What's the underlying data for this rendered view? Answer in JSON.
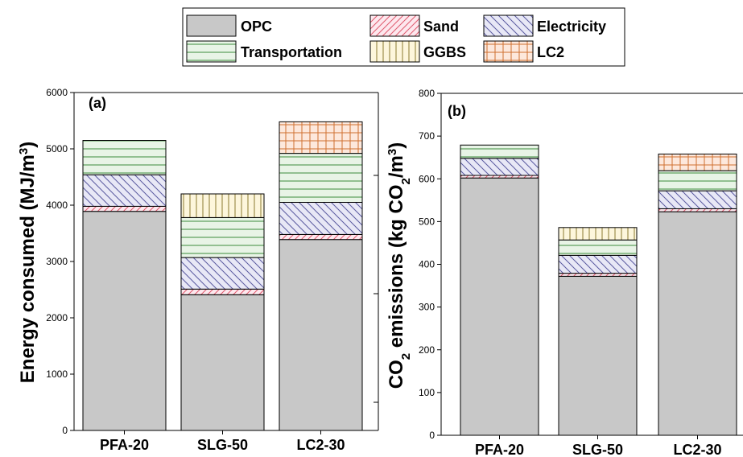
{
  "legend": {
    "items": [
      {
        "key": "opc",
        "label": "OPC"
      },
      {
        "key": "sand",
        "label": "Sand"
      },
      {
        "key": "electricity",
        "label": "Electricity"
      },
      {
        "key": "transportation",
        "label": "Transportation"
      },
      {
        "key": "ggbs",
        "label": "GGBS"
      },
      {
        "key": "lc2",
        "label": "LC2"
      }
    ]
  },
  "colors": {
    "opc": "#c8c8c8",
    "sand": "#e05a6e",
    "electricity": "#5a5aa0",
    "transportation": "#3c8c3c",
    "ggbs": "#8a7a30",
    "lc2": "#d07030",
    "sand_bg": "#fde8ee",
    "electricity_bg": "#e8e8f6",
    "transportation_bg": "#e8f4e6",
    "ggbs_bg": "#fdf6dc",
    "lc2_bg": "#fde8dc"
  },
  "chart_data": [
    {
      "type": "bar",
      "stacked": true,
      "panel_label": "(a)",
      "ylabel_parts": [
        "Energy consumed (MJ/m",
        "3",
        ")"
      ],
      "ylim": [
        0,
        6000
      ],
      "yticks": [
        0,
        1000,
        2000,
        3000,
        4000,
        5000,
        6000
      ],
      "categories": [
        "PFA-20",
        "SLG-50",
        "LC2-30"
      ],
      "series": [
        {
          "key": "opc",
          "name": "OPC",
          "values": [
            3890,
            2410,
            3390
          ]
        },
        {
          "key": "sand",
          "name": "Sand",
          "values": [
            90,
            100,
            90
          ]
        },
        {
          "key": "electricity",
          "name": "Electricity",
          "values": [
            560,
            560,
            570
          ]
        },
        {
          "key": "transportation",
          "name": "Transportation",
          "values": [
            610,
            710,
            870
          ]
        },
        {
          "key": "ggbs",
          "name": "GGBS",
          "values": [
            0,
            420,
            0
          ]
        },
        {
          "key": "lc2",
          "name": "LC2",
          "values": [
            0,
            0,
            560
          ]
        }
      ]
    },
    {
      "type": "bar",
      "stacked": true,
      "panel_label": "(b)",
      "ylabel_parts": [
        "CO",
        "2",
        " emissions (kg CO",
        "2",
        "/m",
        "3",
        ")"
      ],
      "ylim": [
        0,
        800
      ],
      "yticks": [
        0,
        100,
        200,
        300,
        400,
        500,
        600,
        700,
        800
      ],
      "categories": [
        "PFA-20",
        "SLG-50",
        "LC2-30"
      ],
      "series": [
        {
          "key": "opc",
          "name": "OPC",
          "values": [
            602,
            372,
            523
          ]
        },
        {
          "key": "sand",
          "name": "Sand",
          "values": [
            6,
            7,
            7
          ]
        },
        {
          "key": "electricity",
          "name": "Electricity",
          "values": [
            40,
            42,
            42
          ]
        },
        {
          "key": "transportation",
          "name": "Transportation",
          "values": [
            31,
            36,
            47
          ]
        },
        {
          "key": "ggbs",
          "name": "GGBS",
          "values": [
            0,
            29,
            0
          ]
        },
        {
          "key": "lc2",
          "name": "LC2",
          "values": [
            0,
            0,
            39
          ]
        }
      ]
    }
  ]
}
